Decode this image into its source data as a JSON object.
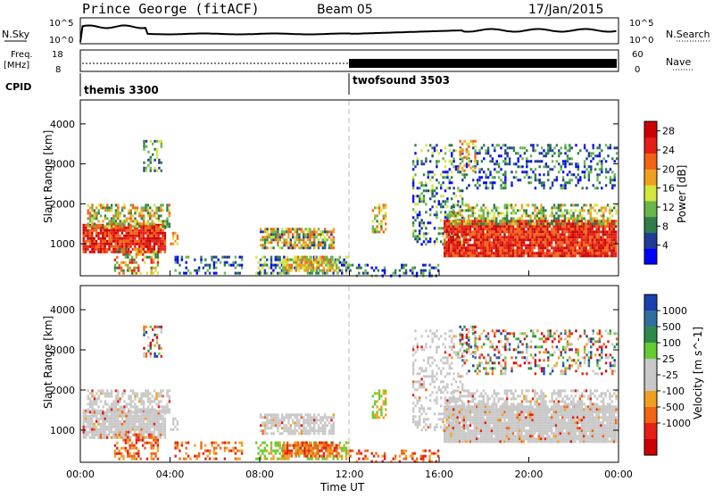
{
  "header": {
    "station": "Prince George (fitACF)",
    "beam": "Beam 05",
    "date": "17/Jan/2015"
  },
  "top_panels": {
    "nsky_label": "N.Sky",
    "nsky_ticks": [
      "10^5",
      "10^0"
    ],
    "nsearch_label": "N.Search",
    "nsearch_ticks": [
      "10^5",
      "10^0"
    ],
    "freq_label_1": "Freq.",
    "freq_label_2": "[MHz]",
    "freq_ticks": [
      "18",
      "8"
    ],
    "nave_label": "Nave",
    "nave_ticks": [
      "60",
      "0"
    ],
    "cpid_label": "CPID",
    "cpid_segments": [
      {
        "name": "themis 3300",
        "start_hour": 0,
        "end_hour": 12
      },
      {
        "name": "twofsound 3503",
        "start_hour": 12,
        "end_hour": 24
      }
    ]
  },
  "colors": {
    "power_scale": [
      "#0000ff",
      "#1e3c96",
      "#2f7d4a",
      "#66b84a",
      "#d4e63c",
      "#f0a020",
      "#f06414",
      "#e61e14",
      "#cc0000"
    ],
    "velocity_scale": [
      "#1a3fb0",
      "#2f6fa0",
      "#2e8a4a",
      "#66cc33",
      "#c8c8c8",
      "#c8c8c8",
      "#f0a020",
      "#f06414",
      "#e61e14",
      "#cc0000"
    ]
  },
  "chart_data": [
    {
      "type": "heatmap",
      "quantity": "power",
      "ylabel": "Slant Range [km]",
      "yticks": [
        1000,
        2000,
        3000,
        4000
      ],
      "ylim": [
        200,
        4600
      ],
      "xlim_hours": [
        0,
        24
      ],
      "colorbar_label": "Power [dB]",
      "colorbar_ticks": [
        "4",
        "8",
        "12",
        "16",
        "20",
        "24",
        "28"
      ],
      "colorbar_range": [
        0,
        30
      ]
    },
    {
      "type": "heatmap",
      "quantity": "velocity",
      "ylabel": "Slant Range [km]",
      "yticks": [
        1000,
        2000,
        3000,
        4000
      ],
      "ylim": [
        200,
        4600
      ],
      "xlim_hours": [
        0,
        24
      ],
      "xlabel": "Time UT",
      "xticks": [
        "00:00",
        "04:00",
        "08:00",
        "12:00",
        "16:00",
        "20:00",
        "00:00"
      ],
      "colorbar_label": "Velocity [m s^-1]",
      "colorbar_ticks": [
        "1000",
        "500",
        "100",
        "25",
        "-25",
        "-100",
        "-500",
        "-1000"
      ]
    }
  ]
}
